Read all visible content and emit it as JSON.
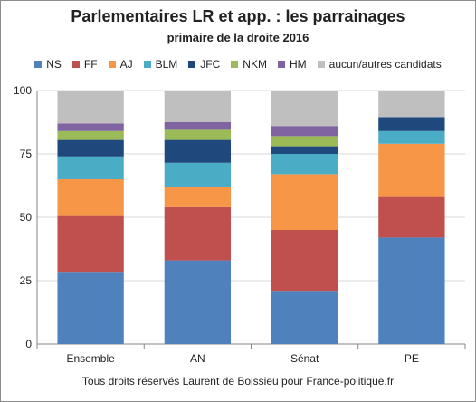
{
  "chart_data": {
    "type": "bar",
    "stacked": true,
    "title": "Parlementaires LR et app. : les parrainages",
    "subtitle": "primaire de la droite 2016",
    "categories": [
      "Ensemble",
      "AN",
      "Sénat",
      "PE"
    ],
    "ylim": [
      0,
      100
    ],
    "yticks": [
      0,
      25,
      50,
      75,
      100
    ],
    "legend_position": "top",
    "grid": "horizontal",
    "series": [
      {
        "name": "NS",
        "color": "#4f81bd",
        "values": [
          28.5,
          33,
          21,
          42
        ]
      },
      {
        "name": "FF",
        "color": "#c0504d",
        "values": [
          22,
          21,
          24,
          16
        ]
      },
      {
        "name": "AJ",
        "color": "#f79646",
        "values": [
          14.5,
          8,
          22,
          21
        ]
      },
      {
        "name": "BLM",
        "color": "#4bacc6",
        "values": [
          9,
          9.5,
          8,
          5
        ]
      },
      {
        "name": "JFC",
        "color": "#1f497d",
        "values": [
          6.5,
          9,
          3,
          5.5
        ]
      },
      {
        "name": "NKM",
        "color": "#9bbb59",
        "values": [
          3.5,
          4,
          4,
          0
        ]
      },
      {
        "name": "HM",
        "color": "#8064a2",
        "values": [
          3,
          3,
          4,
          0
        ]
      },
      {
        "name": "aucun/autres candidats",
        "color": "#bfbfbf",
        "values": [
          13,
          12.5,
          14,
          10.5
        ]
      }
    ]
  },
  "footer": "Tous droits réservés Laurent de Boissieu pour France-politique.fr"
}
